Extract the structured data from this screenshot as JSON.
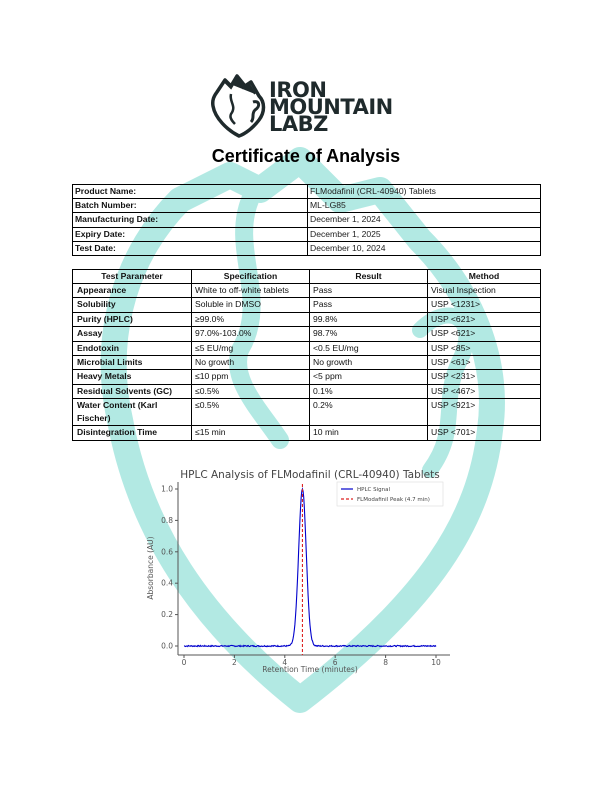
{
  "logo": {
    "line1": "IRON",
    "line2": "MOUNTAIN",
    "line3": "LABZ",
    "icon": "mountain-fist-icon"
  },
  "title": "Certificate of Analysis",
  "product_info": [
    {
      "label": "Product Name:",
      "value": "FLModafinil (CRL-40940) Tablets"
    },
    {
      "label": "Batch Number:",
      "value": "ML-LG85"
    },
    {
      "label": "Manufacturing Date:",
      "value": "December 1, 2024"
    },
    {
      "label": "Expiry Date:",
      "value": "December 1, 2025"
    },
    {
      "label": "Test Date:",
      "value": "December 10, 2024"
    }
  ],
  "tests": {
    "headers": [
      "Test Parameter",
      "Specification",
      "Result",
      "Method"
    ],
    "rows": [
      {
        "parameter": "Appearance",
        "specification": "White to off-white tablets",
        "result": "Pass",
        "method": "Visual Inspection"
      },
      {
        "parameter": "Solubility",
        "specification": "Soluble in DMSO",
        "result": "Pass",
        "method": "USP <1231>"
      },
      {
        "parameter": "Purity (HPLC)",
        "specification": "≥99.0%",
        "result": "99.8%",
        "method": "USP <621>"
      },
      {
        "parameter": "Assay",
        "specification": "97.0%-103.0%",
        "result": "98.7%",
        "method": "USP <621>"
      },
      {
        "parameter": "Endotoxin",
        "specification": "≤5 EU/mg",
        "result": "<0.5 EU/mg",
        "method": "USP <85>"
      },
      {
        "parameter": "Microbial Limits",
        "specification": "No growth",
        "result": "No growth",
        "method": "USP <61>"
      },
      {
        "parameter": "Heavy Metals",
        "specification": "≤10 ppm",
        "result": "<5 ppm",
        "method": "USP <231>"
      },
      {
        "parameter": "Residual Solvents (GC)",
        "specification": "≤0.5%",
        "result": "0.1%",
        "method": "USP <467>"
      },
      {
        "parameter": "Water Content (Karl Fischer)",
        "specification": "≤0.5%",
        "result": "0.2%",
        "method": "USP <921>"
      },
      {
        "parameter": "Disintegration Time",
        "specification": "≤15 min",
        "result": "10 min",
        "method": "USP <701>"
      }
    ]
  },
  "chart_data": {
    "type": "line",
    "title": "HPLC Analysis of FLModafinil (CRL-40940) Tablets",
    "xlabel": "Retention Time (minutes)",
    "ylabel": "Absorbance (AU)",
    "xlim": [
      0,
      10
    ],
    "ylim": [
      0,
      1.0
    ],
    "xticks": [
      0,
      2,
      4,
      6,
      8,
      10
    ],
    "yticks": [
      0.0,
      0.2,
      0.4,
      0.6,
      0.8,
      1.0
    ],
    "grid": false,
    "legend_position": "upper right",
    "series": [
      {
        "name": "HPLC Signal",
        "color": "#0000cc",
        "style": "solid",
        "peak_center": 4.7,
        "peak_height": 1.0,
        "peak_sigma": 0.15,
        "x": [
          0,
          1,
          2,
          3,
          4.0,
          4.2,
          4.4,
          4.5,
          4.6,
          4.7,
          4.8,
          4.9,
          5.0,
          5.2,
          5.4,
          6,
          7,
          8,
          9,
          10
        ],
        "y": [
          0,
          0,
          0,
          0,
          0.0,
          0.06,
          0.37,
          0.61,
          0.8,
          1.0,
          0.8,
          0.61,
          0.37,
          0.06,
          0.0,
          0,
          0,
          0,
          0,
          0
        ]
      },
      {
        "name": "FLModafinil Peak (4.7 min)",
        "color": "#dd2222",
        "style": "dashed",
        "x_position": 4.7
      }
    ]
  },
  "colors": {
    "watermark": "#aee8e2",
    "logo_text": "#1f2a2c",
    "signal": "#0000cc",
    "peak_line": "#dd2222"
  }
}
